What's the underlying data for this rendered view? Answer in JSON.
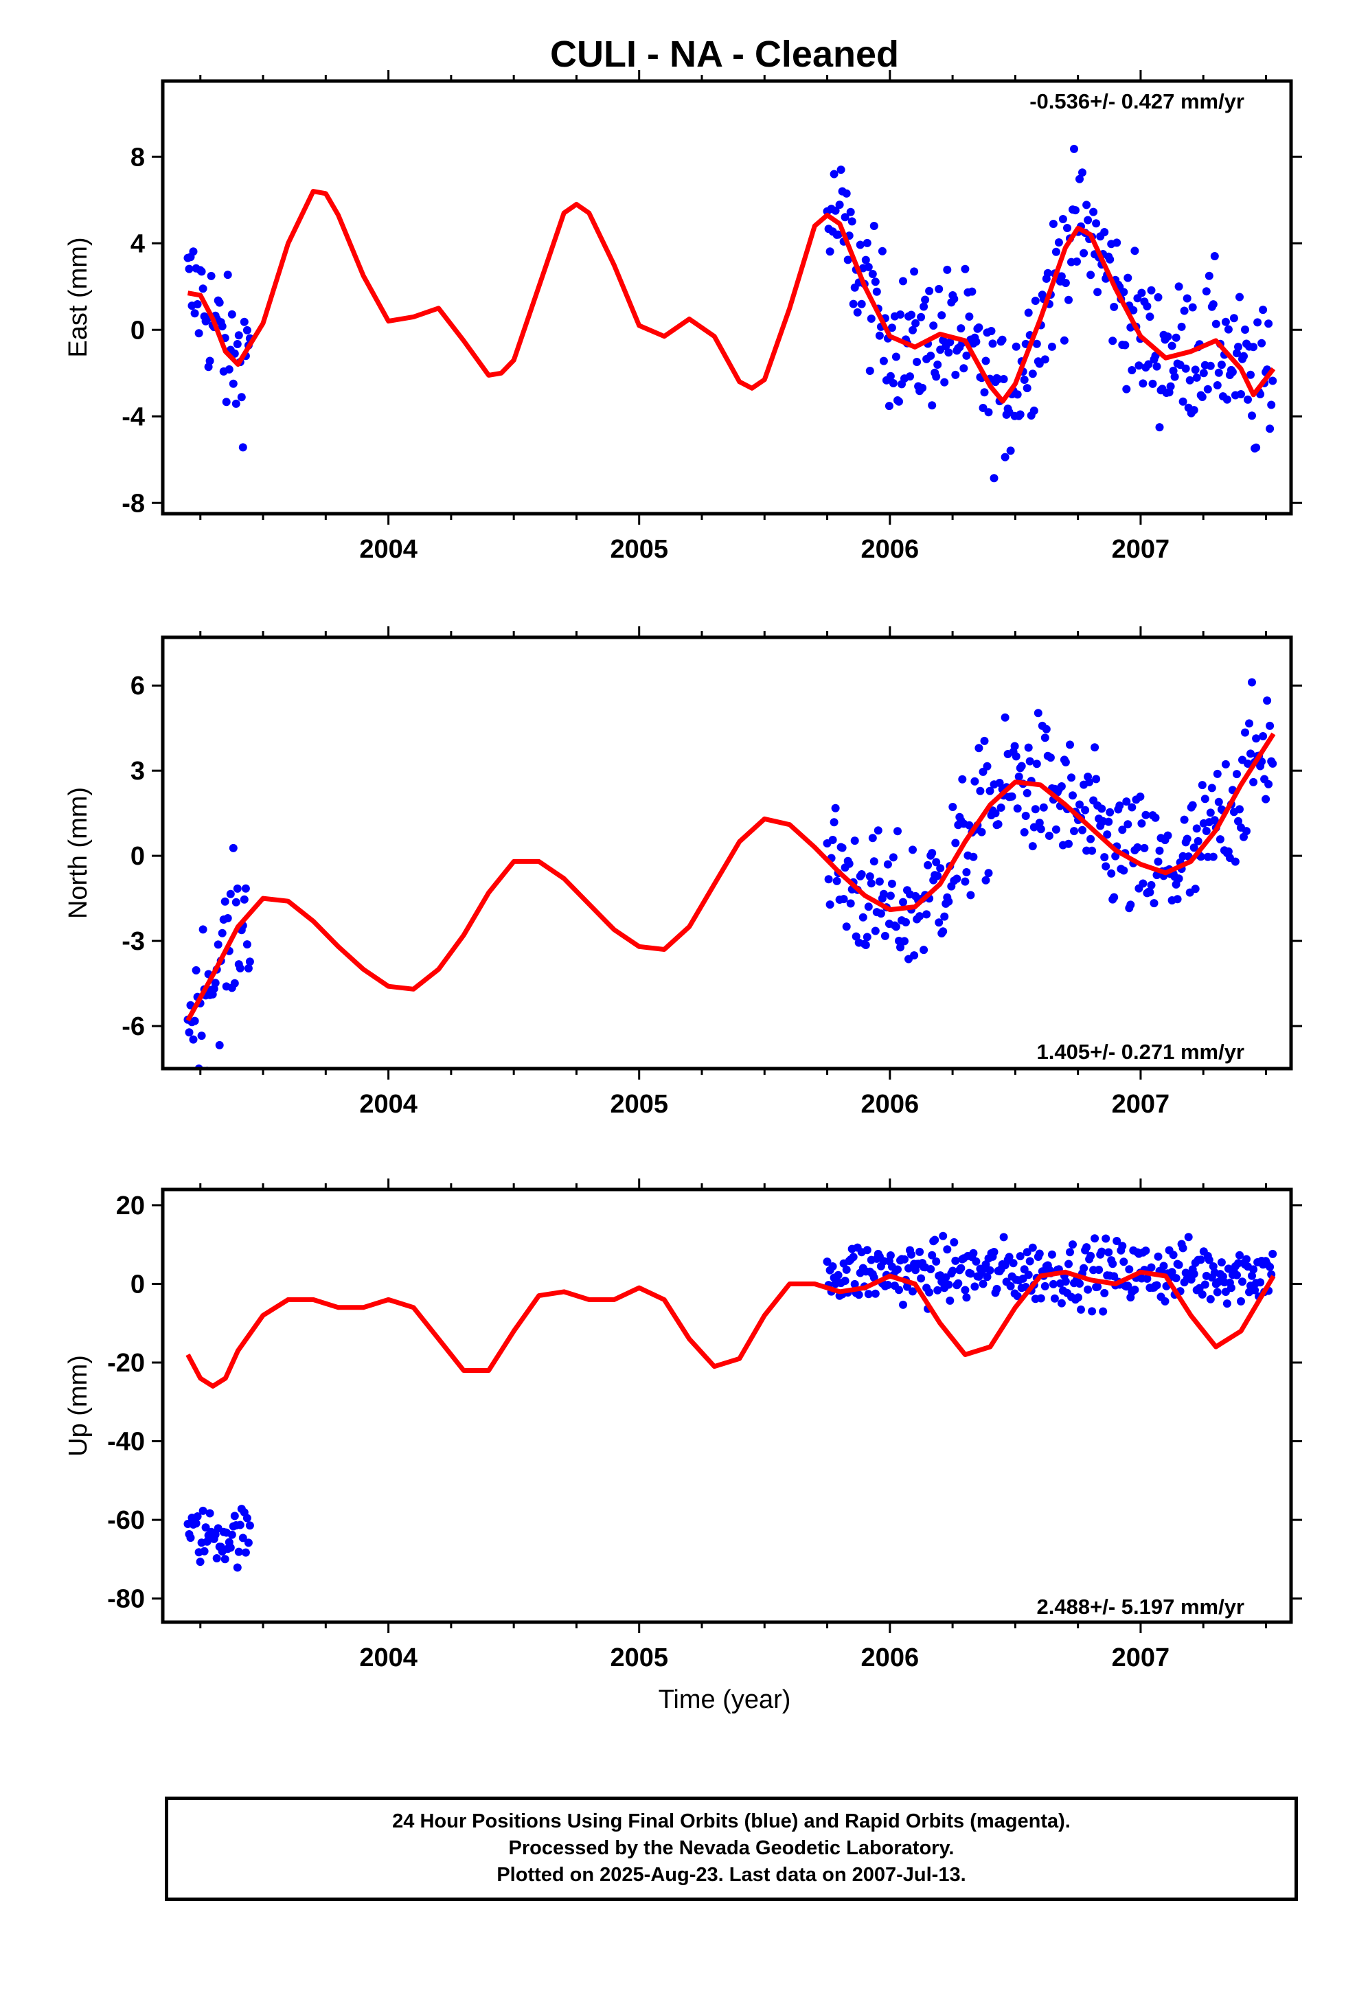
{
  "title": "CULI  - NA - Cleaned",
  "colors": {
    "data": "#0000ff",
    "model": "#ff0000",
    "frame": "#000000"
  },
  "x_axis": {
    "label": "Time (year)",
    "ticks": [
      "2004",
      "2005",
      "2006",
      "2007"
    ]
  },
  "panels": [
    {
      "ylabel": "East (mm)",
      "yticks": [
        "8",
        "4",
        "0",
        "-4",
        "-8"
      ],
      "rate": "-0.536+/- 0.427 mm/yr"
    },
    {
      "ylabel": "North (mm)",
      "yticks": [
        "6",
        "3",
        "0",
        "-3",
        "-6"
      ],
      "rate": "1.405+/- 0.271 mm/yr"
    },
    {
      "ylabel": "Up (mm)",
      "yticks": [
        "20",
        "0",
        "-20",
        "-40",
        "-60",
        "-80"
      ],
      "rate": "2.488+/- 5.197 mm/yr"
    }
  ],
  "caption": {
    "line1": "24 Hour Positions Using Final Orbits (blue) and Rapid Orbits (magenta).",
    "line2": "Processed by the Nevada Geodetic Laboratory.",
    "line3": "Plotted on 2025-Aug-23. Last data on 2007-Jul-13."
  },
  "chart_data": [
    {
      "type": "scatter",
      "title": "CULI  - NA - Cleaned",
      "ylabel": "East (mm)",
      "xlim": [
        2003.1,
        2007.6
      ],
      "ylim": [
        -8.5,
        11.5
      ],
      "rate": "-0.536+/- 0.427 mm/yr",
      "series": [
        {
          "x": [
            2003.2,
            2003.25,
            2003.3,
            2003.35,
            2003.4,
            2003.5,
            2003.6,
            2003.7,
            2003.75,
            2003.8,
            2003.9,
            2004.0,
            2004.1,
            2004.2,
            2004.3,
            2004.4,
            2004.45,
            2004.5,
            2004.6,
            2004.7,
            2004.75,
            2004.8,
            2004.9,
            2005.0,
            2005.1,
            2005.2,
            2005.3,
            2005.4,
            2005.45,
            2005.5,
            2005.6,
            2005.7,
            2005.75,
            2005.8,
            2005.9,
            2006.0,
            2006.1,
            2006.2,
            2006.3,
            2006.4,
            2006.45,
            2006.5,
            2006.6,
            2006.7,
            2006.75,
            2006.8,
            2006.9,
            2007.0,
            2007.1,
            2007.2,
            2007.3,
            2007.4,
            2007.45,
            2007.53
          ],
          "y": [
            1.7,
            1.6,
            0.5,
            -1.0,
            -1.6,
            0.3,
            4.0,
            6.4,
            6.3,
            5.3,
            2.5,
            0.4,
            0.6,
            1.0,
            -0.5,
            -2.1,
            -2.0,
            -1.4,
            2.0,
            5.4,
            5.8,
            5.4,
            3.0,
            0.2,
            -0.3,
            0.5,
            -0.3,
            -2.4,
            -2.7,
            -2.3,
            1.0,
            4.8,
            5.3,
            4.9,
            2.0,
            -0.3,
            -0.8,
            -0.2,
            -0.5,
            -2.6,
            -3.3,
            -2.5,
            0.5,
            3.8,
            4.7,
            4.4,
            1.9,
            -0.3,
            -1.3,
            -1.0,
            -0.5,
            -1.8,
            -3.0,
            -1.8
          ]
        }
      ]
    },
    {
      "type": "scatter",
      "ylabel": "North (mm)",
      "xlim": [
        2003.1,
        2007.6
      ],
      "ylim": [
        -7.5,
        7.7
      ],
      "rate": "1.405+/- 0.271 mm/yr",
      "series": [
        {
          "x": [
            2003.2,
            2003.3,
            2003.4,
            2003.5,
            2003.6,
            2003.7,
            2003.8,
            2003.9,
            2004.0,
            2004.1,
            2004.2,
            2004.3,
            2004.4,
            2004.5,
            2004.6,
            2004.7,
            2004.8,
            2004.9,
            2005.0,
            2005.1,
            2005.2,
            2005.3,
            2005.4,
            2005.5,
            2005.6,
            2005.7,
            2005.8,
            2005.9,
            2006.0,
            2006.1,
            2006.2,
            2006.3,
            2006.4,
            2006.5,
            2006.6,
            2006.7,
            2006.8,
            2006.9,
            2007.0,
            2007.1,
            2007.2,
            2007.3,
            2007.4,
            2007.53
          ],
          "y": [
            -5.8,
            -4.2,
            -2.5,
            -1.5,
            -1.6,
            -2.3,
            -3.2,
            -4.0,
            -4.6,
            -4.7,
            -4.0,
            -2.8,
            -1.3,
            -0.2,
            -0.2,
            -0.8,
            -1.7,
            -2.6,
            -3.2,
            -3.3,
            -2.5,
            -1.0,
            0.5,
            1.3,
            1.1,
            0.3,
            -0.6,
            -1.4,
            -1.9,
            -1.8,
            -1.0,
            0.5,
            1.8,
            2.6,
            2.5,
            1.8,
            1.0,
            0.2,
            -0.3,
            -0.6,
            -0.2,
            0.9,
            2.5,
            4.3
          ]
        }
      ]
    },
    {
      "type": "scatter",
      "ylabel": "Up (mm)",
      "xlabel": "Time (year)",
      "xlim": [
        2003.1,
        2007.6
      ],
      "ylim": [
        -86,
        24
      ],
      "rate": "2.488+/- 5.197 mm/yr",
      "series": [
        {
          "x": [
            2003.2,
            2003.25,
            2003.3,
            2003.35,
            2003.4,
            2003.5,
            2003.6,
            2003.7,
            2003.8,
            2003.9,
            2004.0,
            2004.1,
            2004.2,
            2004.3,
            2004.4,
            2004.5,
            2004.6,
            2004.7,
            2004.8,
            2004.9,
            2005.0,
            2005.1,
            2005.2,
            2005.3,
            2005.4,
            2005.5,
            2005.6,
            2005.7,
            2005.8,
            2005.9,
            2006.0,
            2006.1,
            2006.2,
            2006.3,
            2006.4,
            2006.5,
            2006.6,
            2006.7,
            2006.8,
            2006.9,
            2007.0,
            2007.1,
            2007.2,
            2007.3,
            2007.4,
            2007.53
          ],
          "y": [
            -18,
            -24,
            -26,
            -24,
            -17,
            -8,
            -4,
            -4,
            -6,
            -6,
            -4,
            -6,
            -14,
            -22,
            -22,
            -12,
            -3,
            -2,
            -4,
            -4,
            -1,
            -4,
            -14,
            -21,
            -19,
            -8,
            0,
            0,
            -2,
            -1,
            2,
            0,
            -10,
            -18,
            -16,
            -6,
            2,
            3,
            1,
            0,
            3,
            2,
            -8,
            -16,
            -12,
            2
          ]
        }
      ],
      "blue_clusters": [
        {
          "x_range": [
            2003.2,
            2003.45
          ],
          "y_center": -64,
          "y_spread": 9
        },
        {
          "x_range": [
            2005.75,
            2007.53
          ],
          "y_center": 3,
          "y_spread": 8
        }
      ]
    }
  ]
}
